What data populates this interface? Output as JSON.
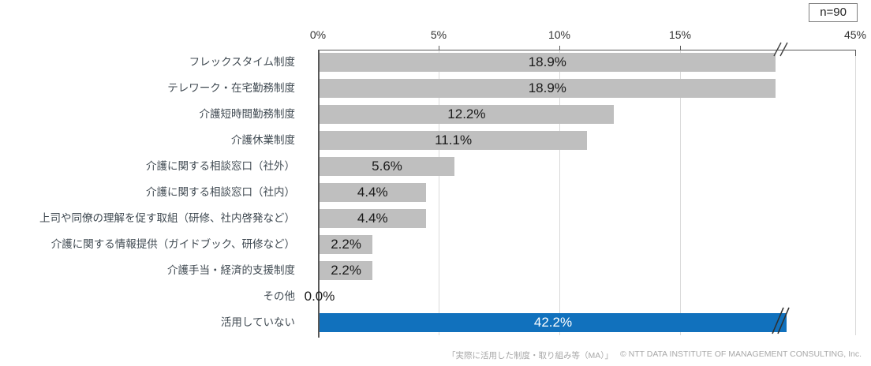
{
  "n_label": "n=90",
  "footer": {
    "source": "「実際に活用した制度・取り組み等（MA）」",
    "copyright": "© NTT DATA INSTITUTE OF MANAGEMENT CONSULTING, Inc."
  },
  "chart_data": {
    "type": "bar",
    "orientation": "horizontal",
    "title": "",
    "n": "n=90",
    "categories": [
      "フレックスタイム制度",
      "テレワーク・在宅勤務制度",
      "介護短時間勤務制度",
      "介護休業制度",
      "介護に関する相談窓口（社外）",
      "介護に関する相談窓口（社内）",
      "上司や同僚の理解を促す取組（研修、社内啓発など）",
      "介護に関する情報提供（ガイドブック、研修など）",
      "介護手当・経済的支援制度",
      "その他",
      "活用していない"
    ],
    "values": [
      18.9,
      18.9,
      12.2,
      11.1,
      5.6,
      4.4,
      4.4,
      2.2,
      2.2,
      0.0,
      42.2
    ],
    "value_labels": [
      "18.9%",
      "18.9%",
      "12.2%",
      "11.1%",
      "5.6%",
      "4.4%",
      "4.4%",
      "2.2%",
      "2.2%",
      "0.0%",
      "42.2%"
    ],
    "axis_ticks": [
      "0%",
      "5%",
      "10%",
      "15%",
      "45%"
    ],
    "axis_tick_values": [
      0,
      5,
      10,
      15,
      45
    ],
    "axis_break": true,
    "xlim": [
      0,
      45
    ],
    "grid": true,
    "highlight_index": 10,
    "bar_colors": {
      "default": "#bfbfbf",
      "highlight": "#1171bd"
    },
    "colors": {
      "axis": "#595959",
      "gridline": "#d9d9d9",
      "value_text": "#1a1a1a",
      "highlight_value_text": "#ffffff",
      "footer_text": "#a8a8a8"
    }
  }
}
